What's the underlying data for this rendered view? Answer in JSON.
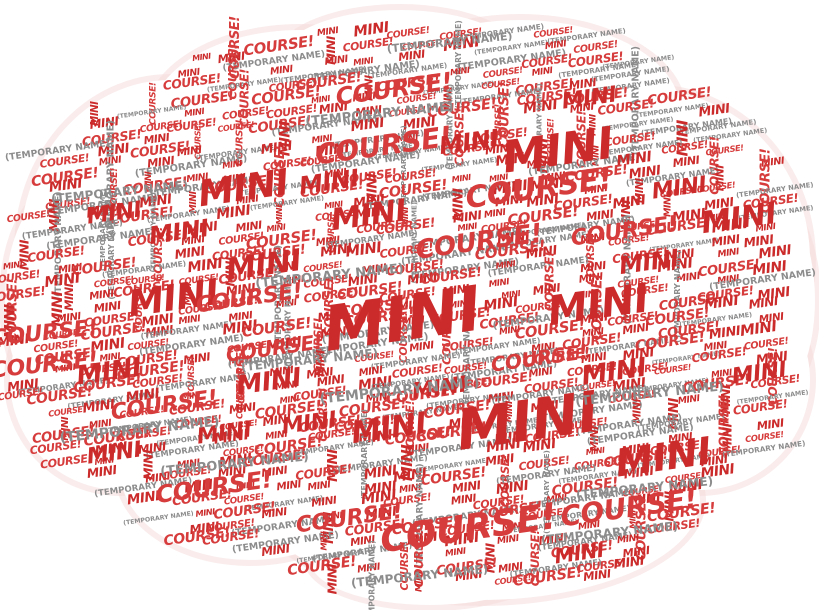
{
  "cloud": {
    "words": {
      "mini": "MINI",
      "course": "COURSE!",
      "temporary": "(TEMPORARY NAME)"
    }
  },
  "colors": {
    "mini": "#cc2b2b",
    "course": "#d73c3c",
    "temporary": "#8c8c8c",
    "outline": "#f6dcdc",
    "background": "#ffffff"
  }
}
